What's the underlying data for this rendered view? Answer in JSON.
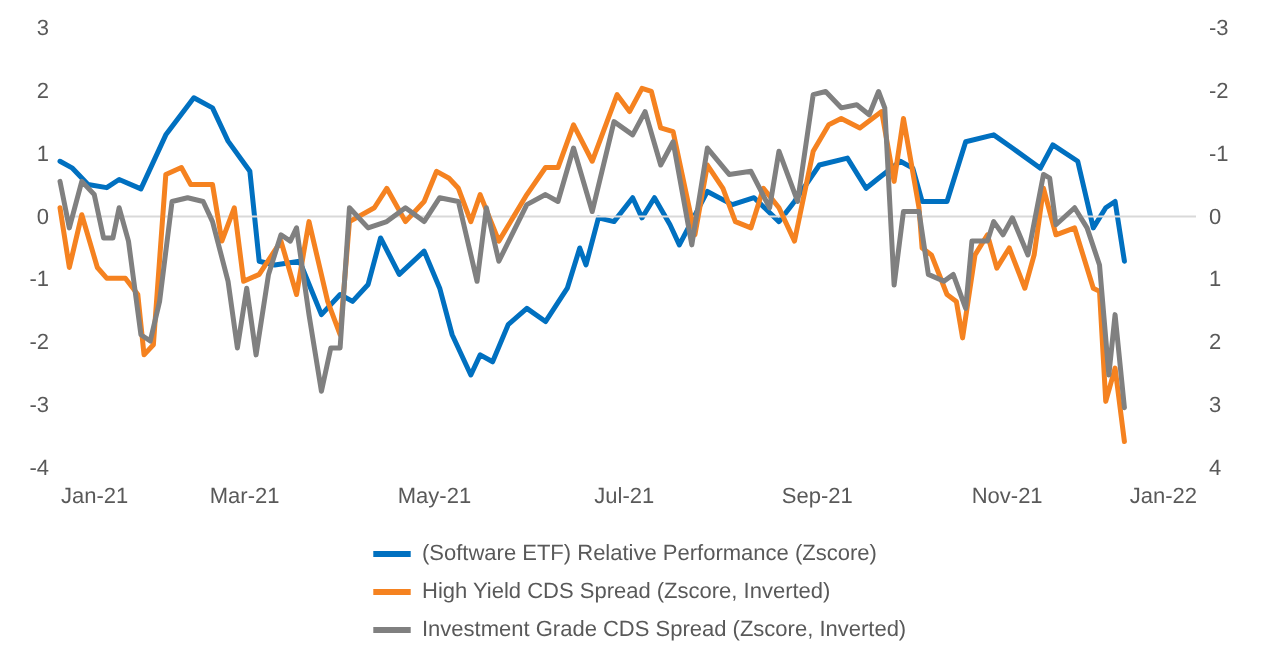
{
  "chart_data": {
    "type": "line",
    "x": [
      "2021-01-01",
      "2021-01-05",
      "2021-01-10",
      "2021-01-16",
      "2021-01-20",
      "2021-01-27",
      "2021-02-04",
      "2021-02-13",
      "2021-02-19",
      "2021-02-24",
      "2021-03-03",
      "2021-03-06",
      "2021-03-11",
      "2021-03-19",
      "2021-03-26",
      "2021-04-01",
      "2021-04-05",
      "2021-04-10",
      "2021-04-14",
      "2021-04-20",
      "2021-04-28",
      "2021-05-03",
      "2021-05-07",
      "2021-05-13",
      "2021-05-16",
      "2021-05-20",
      "2021-05-25",
      "2021-05-31",
      "2021-06-06",
      "2021-06-13",
      "2021-06-17",
      "2021-06-19",
      "2021-06-23",
      "2021-06-28",
      "2021-07-04",
      "2021-07-07",
      "2021-07-11",
      "2021-07-16",
      "2021-07-19",
      "2021-07-28",
      "2021-08-05",
      "2021-08-12",
      "2021-08-20",
      "2021-08-25",
      "2021-09-02",
      "2021-09-11",
      "2021-09-17",
      "2021-09-21",
      "2021-09-28",
      "2021-10-02",
      "2021-10-05",
      "2021-10-13",
      "2021-10-19",
      "2021-10-28",
      "2021-11-03",
      "2021-11-12",
      "2021-11-16",
      "2021-11-24",
      "2021-11-29",
      "2021-12-03",
      "2021-12-06",
      "2021-12-09"
    ],
    "series": [
      {
        "name": "(Software ETF) Relative Performance (Zscore)",
        "color": "#0070c0",
        "values": [
          0.88,
          0.77,
          0.51,
          0.46,
          0.59,
          0.44,
          1.3,
          1.89,
          1.73,
          1.2,
          0.72,
          -0.71,
          -0.77,
          -0.71,
          -1.56,
          -1.24,
          -1.35,
          -1.08,
          -0.34,
          -0.92,
          -0.55,
          -1.14,
          -1.88,
          -2.52,
          -2.2,
          -2.31,
          -1.72,
          -1.46,
          -1.67,
          -1.14,
          -0.5,
          -0.77,
          -0.02,
          -0.08,
          0.3,
          -0.02,
          0.3,
          -0.13,
          -0.45,
          0.4,
          0.19,
          0.3,
          -0.08,
          0.24,
          0.82,
          0.93,
          0.45,
          0.61,
          0.88,
          0.77,
          0.24,
          0.24,
          1.19,
          1.3,
          1.09,
          0.77,
          1.14,
          0.88,
          -0.18,
          0.14,
          0.24,
          -0.71
        ]
      },
      {
        "name": "High Yield CDS Spread (Zscore, Inverted)",
        "color": "#f58220",
        "axis": "y2",
        "x": [
          "2021-01-01",
          "2021-01-04",
          "2021-01-08",
          "2021-01-13",
          "2021-01-16",
          "2021-01-22",
          "2021-01-26",
          "2021-01-28",
          "2021-01-31",
          "2021-02-04",
          "2021-02-09",
          "2021-02-12",
          "2021-02-19",
          "2021-02-22",
          "2021-02-26",
          "2021-03-01",
          "2021-03-06",
          "2021-03-13",
          "2021-03-18",
          "2021-03-22",
          "2021-03-28",
          "2021-04-01",
          "2021-04-04",
          "2021-04-12",
          "2021-04-16",
          "2021-04-22",
          "2021-04-28",
          "2021-05-02",
          "2021-05-06",
          "2021-05-09",
          "2021-05-13",
          "2021-05-16",
          "2021-05-22",
          "2021-05-31",
          "2021-06-06",
          "2021-06-10",
          "2021-06-15",
          "2021-06-21",
          "2021-06-29",
          "2021-07-03",
          "2021-07-07",
          "2021-07-10",
          "2021-07-13",
          "2021-07-17",
          "2021-07-24",
          "2021-07-28",
          "2021-08-02",
          "2021-08-06",
          "2021-08-11",
          "2021-08-15",
          "2021-08-20",
          "2021-08-25",
          "2021-08-31",
          "2021-09-05",
          "2021-09-09",
          "2021-09-15",
          "2021-09-22",
          "2021-09-26",
          "2021-09-29",
          "2021-10-04",
          "2021-10-05",
          "2021-10-08",
          "2021-10-13",
          "2021-10-16",
          "2021-10-18",
          "2021-10-22",
          "2021-10-26",
          "2021-10-29",
          "2021-11-02",
          "2021-11-07",
          "2021-11-10",
          "2021-11-13",
          "2021-11-17",
          "2021-11-23",
          "2021-11-29",
          "2021-12-01",
          "2021-12-03",
          "2021-12-06",
          "2021-12-09"
        ],
        "values": [
          -0.14,
          0.81,
          -0.03,
          0.81,
          0.98,
          0.98,
          1.24,
          2.2,
          2.04,
          -0.67,
          -0.78,
          -0.51,
          -0.51,
          0.39,
          -0.14,
          1.03,
          0.92,
          0.39,
          1.24,
          0.08,
          1.35,
          1.88,
          0.08,
          -0.14,
          -0.45,
          0.08,
          -0.24,
          -0.72,
          -0.61,
          -0.45,
          0.08,
          -0.35,
          0.39,
          -0.35,
          -0.78,
          -0.78,
          -1.46,
          -0.88,
          -1.94,
          -1.67,
          -2.04,
          -1.99,
          -1.41,
          -1.35,
          0.29,
          -0.82,
          -0.45,
          0.08,
          0.18,
          -0.45,
          -0.14,
          0.39,
          -1.04,
          -1.46,
          -1.56,
          -1.41,
          -1.67,
          -0.56,
          -1.56,
          -0.14,
          0.5,
          0.61,
          1.24,
          1.35,
          1.93,
          0.61,
          0.29,
          0.82,
          0.5,
          1.14,
          0.61,
          -0.45,
          0.29,
          0.18,
          1.14,
          1.19,
          2.94,
          2.41,
          3.58
        ]
      },
      {
        "name": "Investment Grade CDS Spread (Zscore, Inverted)",
        "color": "#808080",
        "axis": "y2",
        "x": [
          "2021-01-01",
          "2021-01-04",
          "2021-01-08",
          "2021-01-12",
          "2021-01-15",
          "2021-01-18",
          "2021-01-20",
          "2021-01-23",
          "2021-01-27",
          "2021-01-30",
          "2021-02-02",
          "2021-02-06",
          "2021-02-11",
          "2021-02-16",
          "2021-02-19",
          "2021-02-24",
          "2021-02-27",
          "2021-03-02",
          "2021-03-05",
          "2021-03-09",
          "2021-03-13",
          "2021-03-16",
          "2021-03-18",
          "2021-03-22",
          "2021-03-26",
          "2021-03-29",
          "2021-04-01",
          "2021-04-04",
          "2021-04-10",
          "2021-04-16",
          "2021-04-22",
          "2021-04-28",
          "2021-05-03",
          "2021-05-09",
          "2021-05-15",
          "2021-05-18",
          "2021-05-22",
          "2021-05-31",
          "2021-06-06",
          "2021-06-10",
          "2021-06-15",
          "2021-06-21",
          "2021-06-28",
          "2021-07-04",
          "2021-07-08",
          "2021-07-13",
          "2021-07-17",
          "2021-07-23",
          "2021-07-28",
          "2021-08-04",
          "2021-08-11",
          "2021-08-17",
          "2021-08-20",
          "2021-08-26",
          "2021-08-31",
          "2021-09-04",
          "2021-09-09",
          "2021-09-14",
          "2021-09-18",
          "2021-09-21",
          "2021-09-23",
          "2021-09-26",
          "2021-09-29",
          "2021-10-04",
          "2021-10-07",
          "2021-10-12",
          "2021-10-15",
          "2021-10-19",
          "2021-10-21",
          "2021-10-26",
          "2021-10-28",
          "2021-10-31",
          "2021-11-03",
          "2021-11-08",
          "2021-11-13",
          "2021-11-15",
          "2021-11-17",
          "2021-11-23",
          "2021-11-27",
          "2021-12-01",
          "2021-12-04",
          "2021-12-06",
          "2021-12-09"
        ],
        "values": [
          -0.56,
          0.18,
          -0.56,
          -0.35,
          0.34,
          0.34,
          -0.14,
          0.39,
          1.88,
          1.98,
          1.35,
          -0.24,
          -0.3,
          -0.24,
          0.08,
          1.03,
          2.09,
          1.14,
          2.2,
          0.92,
          0.29,
          0.39,
          0.18,
          1.56,
          2.78,
          2.09,
          2.09,
          -0.14,
          0.18,
          0.08,
          -0.14,
          0.08,
          -0.3,
          -0.24,
          1.03,
          -0.14,
          0.71,
          -0.19,
          -0.35,
          -0.24,
          -1.09,
          -0.08,
          -1.51,
          -1.3,
          -1.67,
          -0.82,
          -1.19,
          0.45,
          -1.09,
          -0.67,
          -0.72,
          -0.14,
          -1.04,
          -0.24,
          -1.94,
          -1.99,
          -1.73,
          -1.78,
          -1.62,
          -1.99,
          -1.73,
          1.09,
          -0.08,
          -0.08,
          0.92,
          1.03,
          0.92,
          1.46,
          0.39,
          0.39,
          0.08,
          0.29,
          0.02,
          0.61,
          -0.67,
          -0.61,
          0.13,
          -0.14,
          0.18,
          0.77,
          2.52,
          1.56,
          3.04
        ]
      }
    ],
    "xlim": [
      "2021-01-01",
      "2022-01-01"
    ],
    "xticks": [
      {
        "value": "2021-01-01",
        "label": "Jan-21"
      },
      {
        "value": "2021-03-01",
        "label": "Mar-21"
      },
      {
        "value": "2021-05-01",
        "label": "May-21"
      },
      {
        "value": "2021-07-01",
        "label": "Jul-21"
      },
      {
        "value": "2021-09-01",
        "label": "Sep-21"
      },
      {
        "value": "2021-11-01",
        "label": "Nov-21"
      },
      {
        "value": "2022-01-01",
        "label": "Jan-22"
      }
    ],
    "ylim": [
      -4,
      3
    ],
    "yticks": [
      -4,
      -3,
      -2,
      -1,
      0,
      1,
      2,
      3
    ],
    "y2lim": [
      4,
      -3
    ],
    "y2ticks": [
      -3,
      -2,
      -1,
      0,
      1,
      2,
      3,
      4
    ],
    "ref_lines": [
      {
        "axis": "y",
        "value": 0,
        "color": "#d9d9d9"
      }
    ],
    "grid": false,
    "legend": "bottom",
    "line_style": "solid"
  }
}
